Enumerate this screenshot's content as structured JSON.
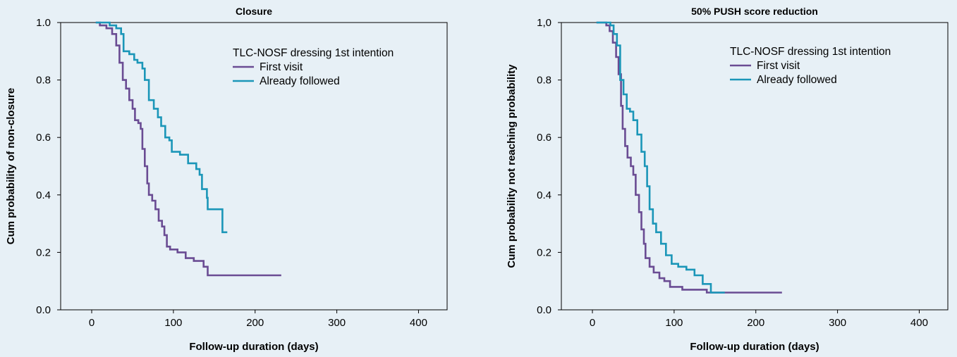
{
  "colors": {
    "background": "#e7f0f6",
    "first_visit": "#6a4c93",
    "already_followed": "#1b96b8"
  },
  "chart_data": [
    {
      "type": "line",
      "title": "Closure",
      "xlabel": "Follow-up duration (days)",
      "ylabel": "Cum probability of non-closure",
      "xlim": [
        -38,
        435
      ],
      "ylim": [
        0.0,
        1.0
      ],
      "xticks": [
        0,
        100,
        200,
        300,
        400
      ],
      "xtick_labels": [
        "0",
        "100",
        "200",
        "300",
        "400"
      ],
      "yticks": [
        0.0,
        0.2,
        0.4,
        0.6,
        0.8,
        1.0
      ],
      "ytick_labels": [
        "0.0",
        "0.2",
        "0.4",
        "0.6",
        "0.8",
        "1.0"
      ],
      "grid": false,
      "legend": {
        "title": "TLC-NOSF dressing 1st intention",
        "placement": "top-right"
      },
      "series": [
        {
          "name": "First visit",
          "color": "#6a4c93",
          "points": [
            [
              5,
              1.0
            ],
            [
              10,
              0.99
            ],
            [
              18,
              0.98
            ],
            [
              25,
              0.96
            ],
            [
              30,
              0.92
            ],
            [
              34,
              0.86
            ],
            [
              38,
              0.8
            ],
            [
              42,
              0.77
            ],
            [
              46,
              0.73
            ],
            [
              50,
              0.7
            ],
            [
              53,
              0.66
            ],
            [
              57,
              0.65
            ],
            [
              60,
              0.63
            ],
            [
              62,
              0.56
            ],
            [
              65,
              0.5
            ],
            [
              68,
              0.44
            ],
            [
              70,
              0.4
            ],
            [
              74,
              0.38
            ],
            [
              78,
              0.35
            ],
            [
              82,
              0.31
            ],
            [
              86,
              0.29
            ],
            [
              89,
              0.26
            ],
            [
              92,
              0.22
            ],
            [
              96,
              0.21
            ],
            [
              105,
              0.2
            ],
            [
              115,
              0.18
            ],
            [
              125,
              0.17
            ],
            [
              137,
              0.15
            ],
            [
              142,
              0.12
            ],
            [
              232,
              0.12
            ]
          ]
        },
        {
          "name": "Already followed",
          "color": "#1b96b8",
          "points": [
            [
              5,
              1.0
            ],
            [
              15,
              1.0
            ],
            [
              22,
              0.99
            ],
            [
              30,
              0.98
            ],
            [
              36,
              0.96
            ],
            [
              39,
              0.9
            ],
            [
              46,
              0.89
            ],
            [
              52,
              0.87
            ],
            [
              56,
              0.86
            ],
            [
              62,
              0.84
            ],
            [
              65,
              0.8
            ],
            [
              70,
              0.73
            ],
            [
              76,
              0.7
            ],
            [
              81,
              0.67
            ],
            [
              85,
              0.64
            ],
            [
              90,
              0.6
            ],
            [
              95,
              0.59
            ],
            [
              98,
              0.55
            ],
            [
              108,
              0.54
            ],
            [
              118,
              0.51
            ],
            [
              128,
              0.49
            ],
            [
              132,
              0.47
            ],
            [
              135,
              0.42
            ],
            [
              141,
              0.39
            ],
            [
              142,
              0.35
            ],
            [
              159,
              0.35
            ],
            [
              160,
              0.27
            ],
            [
              166,
              0.27
            ]
          ]
        }
      ]
    },
    {
      "type": "line",
      "title": "50% PUSH score reduction",
      "xlabel": "Follow-up duration (days)",
      "ylabel": "Cum probability not reaching probability",
      "xlim": [
        -38,
        435
      ],
      "ylim": [
        0.0,
        1.0
      ],
      "xticks": [
        0,
        100,
        200,
        300,
        400
      ],
      "xtick_labels": [
        "0",
        "100",
        "200",
        "300",
        "400"
      ],
      "yticks": [
        0.0,
        0.2,
        0.4,
        0.6,
        0.8,
        1.0
      ],
      "ytick_labels": [
        "0.0",
        "0.2",
        "0.4",
        "0.6",
        "0.8",
        "1,0"
      ],
      "grid": false,
      "legend": {
        "title": "TLC-NOSF dressing 1st intention",
        "placement": "top-right"
      },
      "series": [
        {
          "name": "First visit",
          "color": "#6a4c93",
          "points": [
            [
              5,
              1.0
            ],
            [
              12,
              1.0
            ],
            [
              17,
              0.99
            ],
            [
              21,
              0.97
            ],
            [
              25,
              0.93
            ],
            [
              29,
              0.88
            ],
            [
              32,
              0.82
            ],
            [
              35,
              0.71
            ],
            [
              37,
              0.63
            ],
            [
              40,
              0.57
            ],
            [
              43,
              0.53
            ],
            [
              47,
              0.5
            ],
            [
              50,
              0.47
            ],
            [
              53,
              0.4
            ],
            [
              57,
              0.34
            ],
            [
              60,
              0.28
            ],
            [
              63,
              0.23
            ],
            [
              65,
              0.18
            ],
            [
              70,
              0.15
            ],
            [
              75,
              0.13
            ],
            [
              82,
              0.11
            ],
            [
              88,
              0.1
            ],
            [
              95,
              0.08
            ],
            [
              110,
              0.07
            ],
            [
              125,
              0.07
            ],
            [
              140,
              0.06
            ],
            [
              232,
              0.06
            ]
          ]
        },
        {
          "name": "Already followed",
          "color": "#1b96b8",
          "points": [
            [
              5,
              1.0
            ],
            [
              15,
              1.0
            ],
            [
              22,
              0.99
            ],
            [
              26,
              0.96
            ],
            [
              30,
              0.92
            ],
            [
              34,
              0.8
            ],
            [
              38,
              0.75
            ],
            [
              42,
              0.7
            ],
            [
              46,
              0.69
            ],
            [
              50,
              0.66
            ],
            [
              55,
              0.61
            ],
            [
              60,
              0.55
            ],
            [
              64,
              0.5
            ],
            [
              67,
              0.43
            ],
            [
              70,
              0.35
            ],
            [
              74,
              0.3
            ],
            [
              78,
              0.27
            ],
            [
              84,
              0.23
            ],
            [
              90,
              0.19
            ],
            [
              97,
              0.16
            ],
            [
              105,
              0.15
            ],
            [
              115,
              0.14
            ],
            [
              125,
              0.12
            ],
            [
              135,
              0.09
            ],
            [
              145,
              0.06
            ],
            [
              162,
              0.06
            ]
          ]
        }
      ]
    }
  ]
}
